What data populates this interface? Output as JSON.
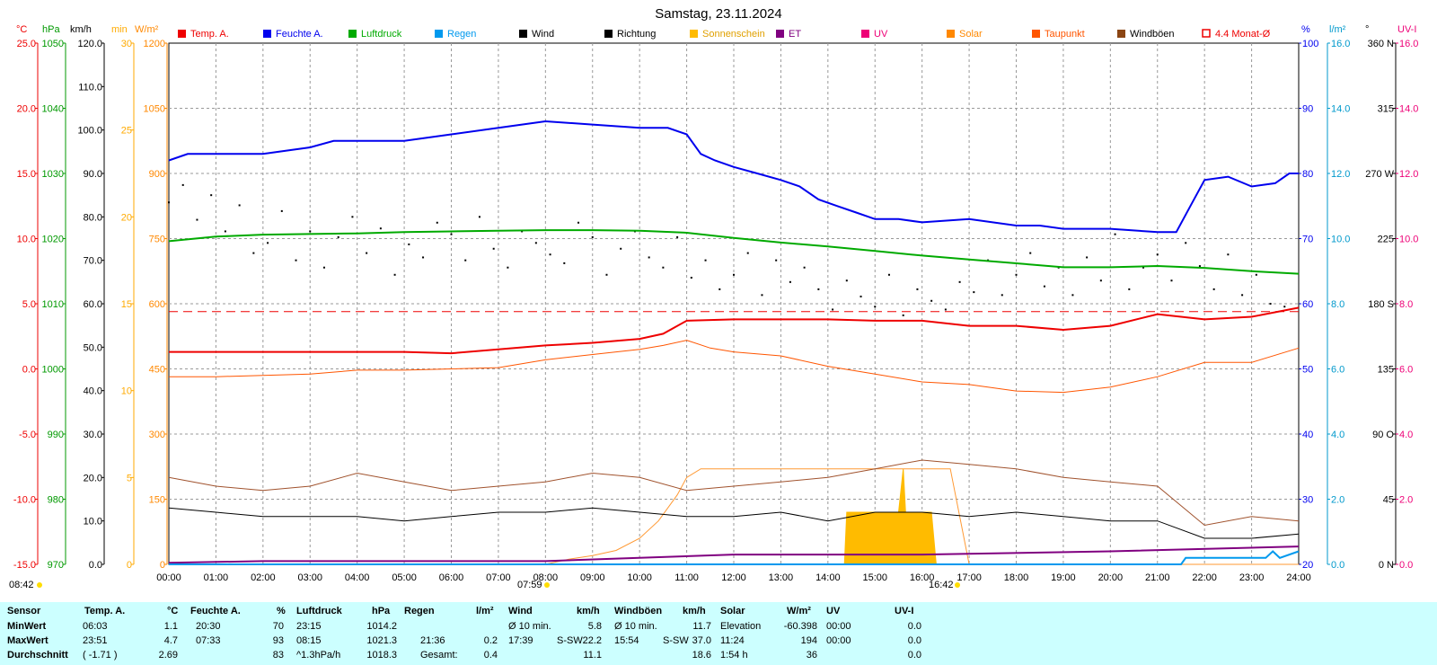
{
  "title": "Samstag, 23.11.2024",
  "legend": [
    {
      "label": "Temp. A.",
      "color": "#ee0000"
    },
    {
      "label": "Feuchte A.",
      "color": "#0000ee"
    },
    {
      "label": "Luftdruck",
      "color": "#00aa00"
    },
    {
      "label": "Regen",
      "color": "#0099ee"
    },
    {
      "label": "Wind",
      "color": "#000000"
    },
    {
      "label": "Richtung",
      "color": "#000000"
    },
    {
      "label": "Sonnenschein",
      "color": "#ffbb00"
    },
    {
      "label": "ET",
      "color": "#800080"
    },
    {
      "label": "UV",
      "color": "#ee0077"
    },
    {
      "label": "Solar",
      "color": "#ff8800"
    },
    {
      "label": "Taupunkt",
      "color": "#ff5500"
    },
    {
      "label": "Windböen",
      "color": "#8b4513"
    },
    {
      "label": "4.4 Monat-Ø",
      "color": "#ee0000"
    }
  ],
  "axis_units": {
    "temp": "°C",
    "pressure": "hPa",
    "wind": "km/h",
    "sunmin": "min",
    "solar": "W/m²",
    "humidity": "%",
    "rain": "l/m²",
    "direction": "°",
    "uv": "UV-I"
  },
  "axes": {
    "temp": {
      "color": "#ee0000",
      "ticks": [
        "25.0",
        "20.0",
        "15.0",
        "10.0",
        "5.0",
        "0.0",
        "-5.0",
        "-10.0",
        "-15.0"
      ]
    },
    "pressure": {
      "color": "#009900",
      "ticks": [
        "1050",
        "1040",
        "1030",
        "1020",
        "1010",
        "1000",
        "990",
        "980",
        "970"
      ]
    },
    "wind": {
      "color": "#000000",
      "ticks": [
        "120.0",
        "110.0",
        "100.0",
        "90.0",
        "80.0",
        "70.0",
        "60.0",
        "50.0",
        "40.0",
        "30.0",
        "20.0",
        "10.0",
        "0.0"
      ]
    },
    "sunmin": {
      "color": "#ffaa00",
      "ticks": [
        "30",
        "25",
        "20",
        "15",
        "10",
        "5",
        "0"
      ]
    },
    "solar": {
      "color": "#ff8800",
      "ticks": [
        "1200",
        "1050",
        "900",
        "750",
        "600",
        "450",
        "300",
        "150",
        "0"
      ]
    },
    "humidity": {
      "color": "#0000ee",
      "ticks": [
        "100",
        "90",
        "80",
        "70",
        "60",
        "50",
        "40",
        "30",
        "20"
      ]
    },
    "rain": {
      "color": "#0099cc",
      "ticks": [
        "16.0",
        "14.0",
        "12.0",
        "10.0",
        "8.0",
        "6.0",
        "4.0",
        "2.0",
        "0.0"
      ]
    },
    "direction": {
      "color": "#000000",
      "ticks": [
        "360 N",
        "315",
        "270 W",
        "225",
        "180 S",
        "135",
        "90 O",
        "45",
        "0 N"
      ]
    },
    "uv": {
      "color": "#ee0077",
      "ticks": [
        "16.0",
        "14.0",
        "12.0",
        "10.0",
        "8.0",
        "6.0",
        "4.0",
        "2.0",
        "0.0"
      ]
    }
  },
  "x_ticks": [
    "00:00",
    "01:00",
    "02:00",
    "03:00",
    "04:00",
    "05:00",
    "06:00",
    "07:00",
    "08:00",
    "09:00",
    "10:00",
    "11:00",
    "12:00",
    "13:00",
    "14:00",
    "15:00",
    "16:00",
    "17:00",
    "18:00",
    "19:00",
    "20:00",
    "21:00",
    "22:00",
    "23:00",
    "24:00"
  ],
  "sun_markers": {
    "day_length": "08:42",
    "sunrise": "07:59",
    "sunset": "16:42"
  },
  "chart_data": {
    "type": "line",
    "title": "Samstag, 23.11.2024",
    "x_unit": "hours",
    "xlim": [
      0,
      24
    ],
    "series": [
      {
        "name": "Feuchte A.",
        "unit": "%",
        "ylim": [
          20,
          100
        ],
        "x": [
          0,
          0.4,
          0.8,
          1.0,
          2.0,
          2.5,
          3.0,
          3.5,
          4.5,
          5.0,
          6.0,
          7.0,
          8.0,
          9.0,
          10.0,
          10.6,
          11.0,
          11.3,
          11.6,
          12.0,
          12.5,
          13.0,
          13.4,
          13.8,
          14.2,
          14.6,
          15.0,
          15.5,
          16.0,
          17.0,
          18.0,
          18.5,
          19.0,
          20.0,
          21.0,
          21.4,
          21.7,
          22.0,
          22.5,
          23.0,
          23.5,
          23.8,
          24.0
        ],
        "y": [
          82,
          83,
          83,
          83,
          83,
          83.5,
          84,
          85,
          85,
          85,
          86,
          87,
          88,
          87.5,
          87,
          87,
          86,
          83,
          82,
          81,
          80,
          79,
          78,
          76,
          75,
          74,
          73,
          73,
          72.5,
          73,
          72,
          72,
          71.5,
          71.5,
          71,
          71,
          75,
          79,
          79.5,
          78,
          78.5,
          80,
          80
        ]
      },
      {
        "name": "Luftdruck",
        "unit": "hPa",
        "ylim": [
          970,
          1050
        ],
        "x": [
          0,
          1,
          2,
          3,
          4,
          5,
          6,
          7,
          8,
          9,
          10,
          11,
          12,
          13,
          14,
          15,
          16,
          17,
          18,
          19,
          20,
          21,
          22,
          23,
          24
        ],
        "y": [
          1019.6,
          1020.3,
          1020.6,
          1020.7,
          1020.8,
          1021.0,
          1021.1,
          1021.2,
          1021.3,
          1021.3,
          1021.2,
          1020.9,
          1020.1,
          1019.4,
          1018.8,
          1018.1,
          1017.4,
          1016.8,
          1016.2,
          1015.6,
          1015.6,
          1015.8,
          1015.5,
          1015.0,
          1014.6
        ]
      },
      {
        "name": "Temp. A.",
        "unit": "°C",
        "ylim": [
          -15,
          25
        ],
        "x": [
          0,
          1,
          2,
          3,
          4,
          5,
          6,
          7,
          8,
          9,
          10,
          10.5,
          11,
          12,
          13,
          14,
          15,
          16,
          17,
          18,
          19,
          20,
          21,
          22,
          23,
          24
        ],
        "y": [
          1.3,
          1.3,
          1.3,
          1.3,
          1.3,
          1.3,
          1.2,
          1.5,
          1.8,
          2.0,
          2.3,
          2.7,
          3.7,
          3.8,
          3.8,
          3.8,
          3.7,
          3.7,
          3.3,
          3.3,
          3.0,
          3.3,
          4.2,
          3.8,
          4.0,
          4.7
        ]
      },
      {
        "name": "Taupunkt",
        "unit": "°C",
        "ylim": [
          -15,
          25
        ],
        "x": [
          0,
          1,
          2,
          3,
          4,
          5,
          6,
          7,
          8,
          9,
          10,
          10.5,
          11,
          11.5,
          12,
          13,
          14,
          15,
          16,
          17,
          18,
          19,
          20,
          21,
          22,
          23,
          24
        ],
        "y": [
          -0.6,
          -0.6,
          -0.5,
          -0.4,
          -0.1,
          -0.1,
          0.0,
          0.1,
          0.7,
          1.1,
          1.5,
          1.8,
          2.2,
          1.6,
          1.3,
          1.0,
          0.2,
          -0.4,
          -1.0,
          -1.2,
          -1.7,
          -1.8,
          -1.4,
          -0.6,
          0.5,
          0.5,
          1.6
        ]
      },
      {
        "name": "4.4 Monat-Ø",
        "unit": "°C",
        "value": 4.4
      },
      {
        "name": "Sonnenschein",
        "unit": "min",
        "x": [
          0,
          8.0,
          8.5,
          9.0,
          9.5,
          10.0,
          10.4,
          10.8,
          11.0,
          11.3,
          12.0,
          13.0,
          14.0,
          15.0,
          16.0,
          16.6,
          17.0,
          24.0
        ],
        "y": [
          0,
          0,
          0.3,
          0.5,
          0.8,
          1.5,
          2.5,
          4.0,
          5.0,
          5.5,
          5.5,
          5.5,
          5.5,
          5.5,
          5.5,
          5.5,
          0,
          0
        ]
      },
      {
        "name": "Solar",
        "unit": "W/m²",
        "ylim": [
          0,
          1200
        ],
        "x": [
          0,
          14.35,
          14.4,
          15.5,
          15.6,
          15.65,
          16.0,
          16.2,
          16.3,
          24.0
        ],
        "y": [
          0,
          0,
          120,
          120,
          220,
          120,
          120,
          120,
          0,
          0
        ]
      },
      {
        "name": "ET",
        "unit": "l/m²",
        "x": [
          0,
          2,
          4,
          8,
          12,
          16,
          20,
          24
        ],
        "y": [
          0.05,
          0.1,
          0.1,
          0.1,
          0.3,
          0.3,
          0.4,
          0.55
        ]
      },
      {
        "name": "Regen",
        "unit": "l/m²",
        "ylim": [
          0,
          16
        ],
        "x": [
          0,
          21.5,
          21.6,
          23.3,
          23.45,
          23.6,
          24
        ],
        "y": [
          0,
          0,
          0.2,
          0.2,
          0.4,
          0.2,
          0.4
        ]
      },
      {
        "name": "Wind",
        "unit": "km/h",
        "ylim": [
          0,
          120
        ],
        "x": [
          0,
          1,
          2,
          3,
          4,
          5,
          6,
          7,
          8,
          9,
          10,
          11,
          12,
          13,
          14,
          15,
          16,
          17,
          18,
          19,
          20,
          21,
          22,
          23,
          24
        ],
        "y": [
          13,
          12,
          11,
          11,
          11,
          10,
          11,
          12,
          12,
          13,
          12,
          11,
          11,
          12,
          10,
          12,
          12,
          11,
          12,
          11,
          10,
          10,
          6,
          6,
          7
        ]
      },
      {
        "name": "Windböen",
        "unit": "km/h",
        "ylim": [
          0,
          120
        ],
        "x": [
          0,
          1,
          2,
          3,
          4,
          5,
          6,
          7,
          8,
          9,
          10,
          11,
          12,
          13,
          14,
          15,
          16,
          17,
          18,
          19,
          20,
          21,
          22,
          23,
          24
        ],
        "y": [
          20,
          18,
          17,
          18,
          21,
          19,
          17,
          18,
          19,
          21,
          20,
          17,
          18,
          19,
          20,
          22,
          24,
          23,
          22,
          20,
          19,
          18,
          9,
          11,
          10
        ]
      },
      {
        "name": "Richtung",
        "unit": "°",
        "ylim": [
          0,
          360
        ],
        "type": "scatter",
        "x": [
          0.0,
          0.3,
          0.6,
          0.9,
          1.2,
          1.5,
          1.8,
          2.1,
          2.4,
          2.7,
          3.0,
          3.3,
          3.6,
          3.9,
          4.2,
          4.5,
          4.8,
          5.1,
          5.4,
          5.7,
          6.0,
          6.3,
          6.6,
          6.9,
          7.2,
          7.5,
          7.8,
          8.1,
          8.4,
          8.7,
          9.0,
          9.3,
          9.6,
          9.9,
          10.2,
          10.5,
          10.8,
          11.1,
          11.4,
          11.7,
          12.0,
          12.3,
          12.6,
          12.9,
          13.2,
          13.5,
          13.8,
          14.1,
          14.4,
          14.7,
          15.0,
          15.3,
          15.6,
          15.9,
          16.2,
          16.5,
          16.8,
          17.1,
          17.4,
          17.7,
          18.0,
          18.3,
          18.6,
          18.9,
          19.2,
          19.5,
          19.8,
          20.1,
          20.4,
          20.7,
          21.0,
          21.3,
          21.6,
          21.9,
          22.2,
          22.5,
          22.8,
          23.1,
          23.4,
          23.7
        ],
        "y": [
          250,
          262,
          238,
          255,
          230,
          248,
          215,
          222,
          244,
          210,
          230,
          205,
          226,
          240,
          215,
          232,
          200,
          221,
          212,
          236,
          228,
          210,
          240,
          218,
          205,
          230,
          222,
          214,
          208,
          236,
          226,
          200,
          218,
          230,
          212,
          205,
          226,
          198,
          210,
          190,
          200,
          215,
          186,
          210,
          195,
          205,
          190,
          176,
          196,
          185,
          178,
          200,
          172,
          190,
          182,
          176,
          195,
          188,
          210,
          186,
          200,
          215,
          192,
          205,
          186,
          212,
          196,
          228,
          190,
          205,
          214,
          196,
          222,
          206,
          190,
          214,
          186,
          200,
          180,
          178
        ]
      }
    ]
  },
  "stats": {
    "headers": {
      "sensor": "Sensor",
      "temp": "Temp. A.",
      "temp_unit": "°C",
      "hum": "Feuchte A.",
      "hum_unit": "%",
      "press": "Luftdruck",
      "press_unit": "hPa",
      "rain": "Regen",
      "rain_unit": "l/m²",
      "wind": "Wind",
      "wind_unit": "km/h",
      "gust": "Windböen",
      "gust_unit": "km/h",
      "solar": "Solar",
      "solar_unit": "W/m²",
      "uv": "UV",
      "uv_unit": "UV-I"
    },
    "rows": [
      {
        "label": "MinWert",
        "temp_time": "06:03",
        "temp_val": "1.1",
        "hum_time": "20:30",
        "hum_val": "70",
        "press_time": "23:15",
        "press_val": "1014.2",
        "rain_time": "",
        "rain_val": "",
        "wind_label": "Ø 10 min.",
        "wind_val": "5.8",
        "gust_label": "Ø 10 min.",
        "gust_val": "11.7",
        "solar_label": "Elevation",
        "solar_val": "-60.398",
        "uv_time": "00:00",
        "uv_val": "0.0"
      },
      {
        "label": "MaxWert",
        "temp_time": "23:51",
        "temp_val": "4.7",
        "hum_time": "07:33",
        "hum_val": "93",
        "press_time": "08:15",
        "press_val": "1021.3",
        "rain_time": "21:36",
        "rain_val": "0.2",
        "wind_label": "17:39",
        "wind_dir": "S-SW",
        "wind_val": "22.2",
        "gust_label": "15:54",
        "gust_dir": "S-SW",
        "gust_val": "37.0",
        "solar_label": "11:24",
        "solar_val": "194",
        "uv_time": "00:00",
        "uv_val": "0.0"
      },
      {
        "label": "Durchschnitt",
        "temp_time": "( -1.71 )",
        "temp_val": "2.69",
        "hum_time": "",
        "hum_val": "83",
        "press_time": "^1.3hPa/h",
        "press_val": "1018.3",
        "rain_time": "Gesamt:",
        "rain_val": "0.4",
        "wind_label": "",
        "wind_val": "11.1",
        "gust_label": "",
        "gust_val": "18.6",
        "solar_label": "1:54 h",
        "solar_val": "36",
        "uv_time": "",
        "uv_val": "0.0"
      }
    ]
  }
}
